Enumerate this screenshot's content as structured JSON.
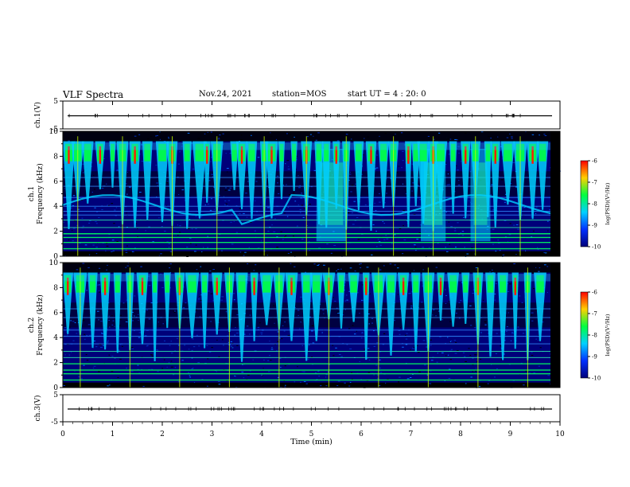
{
  "header": {
    "title": "VLF Spectra",
    "date": "Nov.24, 2021",
    "station": "station=MOS",
    "start": "start UT =  4 : 20: 0"
  },
  "chart_data": [
    {
      "type": "line",
      "panel": "ch1-waveform",
      "ylabel": "ch.1(V)",
      "ylim": [
        -5,
        5
      ],
      "yticks": [
        "5",
        "-5"
      ],
      "note": "flat trace near 0 V with periodic marks"
    },
    {
      "type": "heatmap",
      "panel": "ch1-spectrogram",
      "ylabel": "ch.1\nFrequency (kHz)",
      "ylim": [
        0,
        10
      ],
      "yticks": [
        "0",
        "2",
        "4",
        "6",
        "8",
        "10"
      ],
      "colorbar": {
        "label": "log(PSD)(V²/Hz)",
        "range": [
          -10,
          -6
        ],
        "ticks": [
          "-6",
          "-7",
          "-8",
          "-9",
          "-10"
        ]
      },
      "features": {
        "bursts_min": [
          0.12,
          0.3,
          0.5,
          0.75,
          1.0,
          1.2,
          1.45,
          1.7,
          2.0,
          2.2,
          2.5,
          2.75,
          2.9,
          3.1,
          3.45,
          3.6,
          3.8,
          4.05,
          4.2,
          4.4,
          4.65,
          4.9,
          5.15,
          5.3,
          5.5,
          5.7,
          5.95,
          6.2,
          6.45,
          6.65,
          6.95,
          7.1,
          7.25,
          7.45,
          7.6,
          7.85,
          8.1,
          8.3,
          8.55,
          8.7,
          8.95,
          9.2,
          9.45,
          9.65
        ],
        "broad_emissions_min": [
          [
            5.1,
            5.7
          ],
          [
            7.2,
            7.7
          ],
          [
            8.2,
            8.6
          ]
        ],
        "emission_band_khz": [
          4.5,
          5.5
        ],
        "horizontal_lines_khz": [
          0.6,
          1.1,
          1.5,
          1.8,
          2.3,
          2.9,
          3.3,
          3.6,
          4.0,
          4.7,
          5.6,
          6.3
        ]
      }
    },
    {
      "type": "heatmap",
      "panel": "ch2-spectrogram",
      "ylabel": "ch.2\nFrequency (kHz)",
      "ylim": [
        0,
        10
      ],
      "yticks": [
        "0",
        "2",
        "4",
        "6",
        "8",
        "10"
      ],
      "colorbar": {
        "label": "log(PSD)(V²/Hz)",
        "range": [
          -10,
          -6
        ],
        "ticks": [
          "-6",
          "-7",
          "-8",
          "-9",
          "-10"
        ]
      },
      "features": {
        "bursts_min": [
          0.1,
          0.35,
          0.6,
          0.85,
          1.1,
          1.35,
          1.6,
          1.85,
          2.1,
          2.35,
          2.6,
          2.85,
          3.1,
          3.35,
          3.6,
          3.85,
          4.1,
          4.35,
          4.6,
          4.9,
          5.1,
          5.35,
          5.6,
          5.85,
          6.1,
          6.35,
          6.6,
          6.85,
          7.1,
          7.35,
          7.6,
          7.85,
          8.1,
          8.35,
          8.6,
          8.85,
          9.1,
          9.35,
          9.6
        ],
        "horizontal_lines_khz": [
          0.6,
          1.1,
          1.4,
          1.9,
          2.4,
          2.9,
          3.5,
          4.1,
          4.6,
          5.6,
          6.3
        ]
      }
    },
    {
      "type": "line",
      "panel": "ch3-waveform",
      "ylabel": "ch.3(V)",
      "ylim": [
        -5,
        5
      ],
      "yticks": [
        "5",
        "-5"
      ],
      "xlabel": "Time (min)",
      "xlim": [
        0,
        10
      ],
      "xticks": [
        "0",
        "1",
        "2",
        "3",
        "4",
        "5",
        "6",
        "7",
        "8",
        "9",
        "10"
      ]
    }
  ],
  "colors": {
    "low": "#00007a",
    "mid": "#00d0ff",
    "high": "#00ff40",
    "peak": "#ff1a00"
  }
}
